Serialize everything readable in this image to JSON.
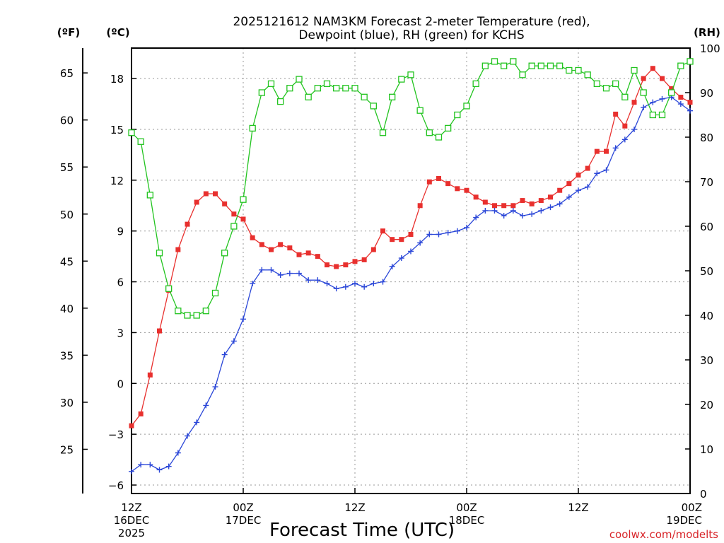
{
  "chart_data": {
    "type": "line",
    "title_line1": "2025121612 NAM3KM Forecast 2-meter Temperature (red),",
    "title_line2": "Dewpoint (blue), RH (green) for KCHS",
    "xlabel": "Forecast Time (UTC)",
    "credit": "coolwx.com/modelts",
    "units": {
      "fahrenheit": "(ºF)",
      "celsius": "(ºC)",
      "rh": "(RH)"
    },
    "x_unit": "forecast hour from 2025-12-16 12Z",
    "xlim": [
      0,
      60
    ],
    "c_lim": [
      -6.5,
      19.8
    ],
    "rh_lim": [
      0,
      100
    ],
    "x_ticks": [
      {
        "hour": 0,
        "line1": "12Z",
        "line2": "16DEC",
        "line3": "2025"
      },
      {
        "hour": 12,
        "line1": "00Z",
        "line2": "17DEC",
        "line3": ""
      },
      {
        "hour": 24,
        "line1": "12Z",
        "line2": "",
        "line3": ""
      },
      {
        "hour": 36,
        "line1": "00Z",
        "line2": "18DEC",
        "line3": ""
      },
      {
        "hour": 48,
        "line1": "12Z",
        "line2": "",
        "line3": ""
      },
      {
        "hour": 60,
        "line1": "00Z",
        "line2": "19DEC",
        "line3": ""
      }
    ],
    "c_ticks": [
      18,
      15,
      12,
      9,
      6,
      3,
      0,
      -3,
      -6
    ],
    "c_tick_labels": [
      "18",
      "15",
      "12",
      "9",
      "6",
      "3",
      "0",
      "−3",
      "−6"
    ],
    "f_ticks": [
      65,
      60,
      55,
      50,
      45,
      40,
      35,
      30,
      25
    ],
    "f_tick_labels": [
      "65",
      "60",
      "55",
      "50",
      "45",
      "40",
      "35",
      "30",
      "25"
    ],
    "rh_ticks": [
      100,
      90,
      80,
      70,
      60,
      50,
      40,
      30,
      20,
      10,
      0
    ],
    "rh_tick_labels": [
      "100",
      "90",
      "80",
      "70",
      "60",
      "50",
      "40",
      "30",
      "20",
      "10",
      "0"
    ],
    "hours": [
      0,
      1,
      2,
      3,
      4,
      5,
      6,
      7,
      8,
      9,
      10,
      11,
      12,
      13,
      14,
      15,
      16,
      17,
      18,
      19,
      20,
      21,
      22,
      23,
      24,
      25,
      26,
      27,
      28,
      29,
      30,
      31,
      32,
      33,
      34,
      35,
      36,
      37,
      38,
      39,
      40,
      41,
      42,
      43,
      44,
      45,
      46,
      47,
      48,
      49,
      50,
      51,
      52,
      53,
      54,
      55,
      56,
      57,
      58,
      59,
      60
    ],
    "series": [
      {
        "name": "2-meter Temperature",
        "unit": "°C",
        "color": "#e8302e",
        "marker": "filled-square",
        "values": [
          -2.5,
          -1.8,
          0.5,
          3.1,
          5.5,
          7.9,
          9.4,
          10.7,
          11.2,
          11.2,
          10.6,
          10.0,
          9.7,
          8.6,
          8.2,
          7.9,
          8.2,
          8.0,
          7.6,
          7.7,
          7.5,
          7.0,
          6.9,
          7.0,
          7.2,
          7.3,
          7.9,
          9.0,
          8.5,
          8.5,
          8.8,
          10.5,
          11.9,
          12.1,
          11.8,
          11.5,
          11.4,
          11.0,
          10.7,
          10.5,
          10.5,
          10.5,
          10.8,
          10.6,
          10.8,
          11.0,
          11.4,
          11.8,
          12.3,
          12.7,
          13.7,
          13.7,
          15.9,
          15.2,
          16.6,
          18.0,
          18.6,
          18.0,
          17.4,
          16.9,
          16.6
        ]
      },
      {
        "name": "Dewpoint",
        "unit": "°C",
        "color": "#2b47d8",
        "marker": "plus",
        "values": [
          -5.2,
          -4.8,
          -4.8,
          -5.1,
          -4.9,
          -4.1,
          -3.1,
          -2.3,
          -1.3,
          -0.2,
          1.7,
          2.5,
          3.8,
          5.9,
          6.7,
          6.7,
          6.4,
          6.5,
          6.5,
          6.1,
          6.1,
          5.9,
          5.6,
          5.7,
          5.9,
          5.7,
          5.9,
          6.0,
          6.9,
          7.4,
          7.8,
          8.3,
          8.8,
          8.8,
          8.9,
          9.0,
          9.2,
          9.8,
          10.2,
          10.2,
          9.9,
          10.2,
          9.9,
          10.0,
          10.2,
          10.4,
          10.6,
          11.0,
          11.4,
          11.6,
          12.4,
          12.6,
          13.9,
          14.4,
          15.0,
          16.3,
          16.6,
          16.8,
          16.9,
          16.5,
          16.1
        ]
      },
      {
        "name": "RH",
        "unit": "%",
        "color": "#22c41f",
        "marker": "open-square",
        "values": [
          81,
          79,
          67,
          54,
          46,
          41,
          40,
          40,
          41,
          45,
          54,
          60,
          66,
          82,
          90,
          92,
          88,
          91,
          93,
          89,
          91,
          92,
          91,
          91,
          91,
          89,
          87,
          81,
          89,
          93,
          94,
          86,
          81,
          80,
          82,
          85,
          87,
          92,
          96,
          97,
          96,
          97,
          94,
          96,
          96,
          96,
          96,
          95,
          95,
          94,
          92,
          91,
          92,
          89,
          95,
          90,
          85,
          85,
          90,
          96,
          97
        ]
      }
    ]
  }
}
